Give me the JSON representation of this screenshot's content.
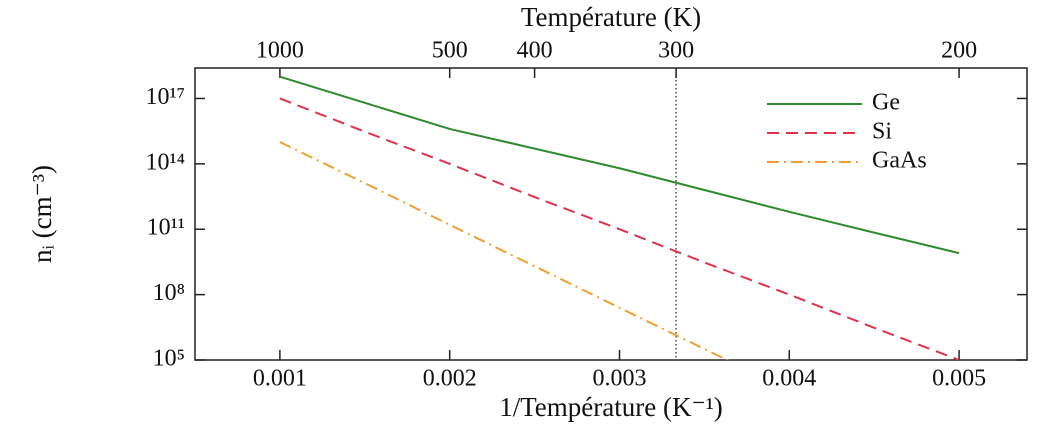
{
  "chart_data": {
    "type": "line",
    "x2_title": "Température (K)",
    "x_title": "1/Température (K⁻¹)",
    "y_title": "nᵢ (cm⁻³)",
    "x": [
      0.001,
      0.0015,
      0.002,
      0.0025,
      0.003,
      0.0035,
      0.004,
      0.0045,
      0.005
    ],
    "series": [
      {
        "name": "Ge",
        "color": "#2e8b2e",
        "dash": "solid",
        "values": [
          1e+18,
          6.3e+16,
          4000000000000000.0,
          500000000000000.0,
          63000000000000.0,
          6300000000000.0,
          630000000000.0,
          70000000000.0,
          8000000000.0
        ]
      },
      {
        "name": "Si",
        "color": "#e0334a",
        "dash": "dashed",
        "values": [
          1e+17,
          3000000000000000.0,
          100000000000000.0,
          3000000000000.0,
          100000000000.0,
          3000000000.0,
          100000000.0,
          3000000.0,
          100000.0
        ]
      },
      {
        "name": "GaAs",
        "color": "#f0a030",
        "dash": "dashdot",
        "values": [
          1000000000000000.0,
          13000000000000.0,
          160000000000.0,
          2000000000.0,
          25000000.0,
          320000.0,
          4000.0,
          null,
          null
        ]
      }
    ],
    "xlim": [
      0.0005,
      0.0054
    ],
    "xticks": [
      0.001,
      0.002,
      0.003,
      0.004,
      0.005
    ],
    "ylim": [
      100000.0,
      2.5e+18
    ],
    "yscale": "log",
    "yticks": [
      {
        "value": 100000.0,
        "label": "10⁵"
      },
      {
        "value": 100000000.0,
        "label": "10⁸"
      },
      {
        "value": 100000000000.0,
        "label": "10¹¹"
      },
      {
        "value": 100000000000000.0,
        "label": "10¹⁴"
      },
      {
        "value": 1e+17,
        "label": "10¹⁷"
      }
    ],
    "x2scale": "reciprocal",
    "x2ticks": [
      1000,
      500,
      400,
      300,
      200
    ],
    "vline_x2": 300,
    "legend": "upper right"
  }
}
